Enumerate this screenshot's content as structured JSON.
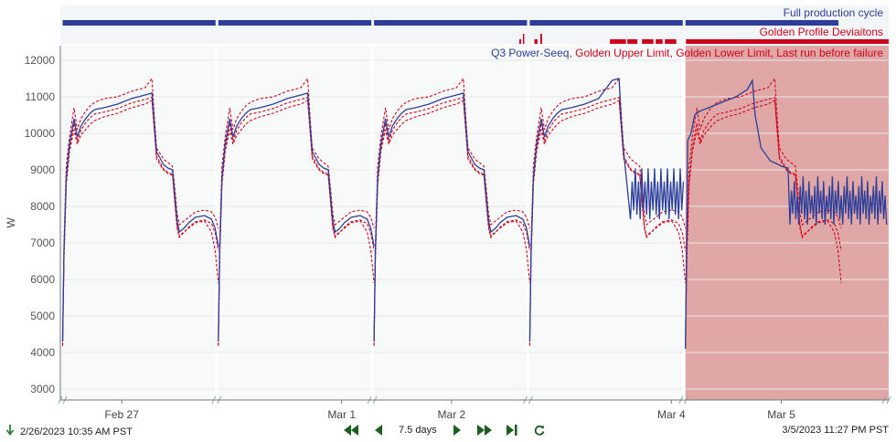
{
  "capsule_lanes": [
    {
      "label": "Full production cycle",
      "color": "#2c3e99"
    },
    {
      "label": "Golden Profile Deviaitons",
      "color": "#d0021b"
    }
  ],
  "legend": [
    {
      "text": "Q3 Power-Seeq",
      "color": "#2c3e99"
    },
    {
      "text": ", ",
      "color": "#d0021b"
    },
    {
      "text": "Golden Upper Limit",
      "color": "#d0021b"
    },
    {
      "text": ", ",
      "color": "#d0021b"
    },
    {
      "text": "Golden Lower Limit",
      "color": "#d0021b"
    },
    {
      "text": ", ",
      "color": "#d0021b"
    },
    {
      "text": "Last run before failure",
      "color": "#d0021b"
    }
  ],
  "chart_data": {
    "type": "line",
    "ylabel": "W",
    "ylim": [
      2700,
      12400
    ],
    "y_ticks": [
      3000,
      4000,
      5000,
      6000,
      7000,
      8000,
      9000,
      10000,
      11000,
      12000
    ],
    "x_range_hours": [
      0,
      180.87
    ],
    "x_tick_labels": [
      {
        "label": "Feb 27",
        "hour": 13.42
      },
      {
        "label": "Mar 1",
        "hour": 61.42
      },
      {
        "label": "Mar 2",
        "hour": 85.42
      },
      {
        "label": "Mar 4",
        "hour": 133.42
      },
      {
        "label": "Mar 5",
        "hour": 157.42
      }
    ],
    "cycle_starts_hours": [
      0.5,
      34.5,
      68.5,
      102.5,
      136.5
    ],
    "cycle_length_hours": 34,
    "highlight_range_hours": [
      136.5,
      180.87
    ],
    "series": [
      {
        "name": "Q3 Power-Seeq",
        "color": "#2c3e99",
        "style": "solid"
      },
      {
        "name": "Golden Upper Limit",
        "color": "#d0021b",
        "style": "dashed"
      },
      {
        "name": "Golden Lower Limit",
        "color": "#d0021b",
        "style": "dashed"
      },
      {
        "name": "Last run before failure",
        "color": "#d0021b",
        "style": "dashed"
      }
    ],
    "cycle_profile_hours": [
      0,
      0.3,
      0.8,
      1.5,
      2.5,
      3.2,
      4.0,
      5.0,
      6.0,
      7.0,
      9.0,
      12.0,
      15.0,
      18.0,
      19.5,
      20.0,
      20.5,
      22.0,
      23.0,
      24.0,
      24.5,
      25.0,
      25.5,
      26.0,
      26.5,
      27.5,
      29.0,
      31.0,
      32.5,
      33.3,
      34.0
    ],
    "profile_main_w": [
      4300,
      6800,
      8800,
      9700,
      10400,
      9900,
      10200,
      10400,
      10550,
      10650,
      10700,
      10800,
      10950,
      11050,
      11100,
      10300,
      9500,
      9150,
      9050,
      9000,
      8300,
      7600,
      7300,
      7350,
      7400,
      7550,
      7700,
      7750,
      7650,
      7400,
      6900
    ],
    "profile_upper_w": [
      4400,
      7000,
      9100,
      9900,
      10700,
      10100,
      10400,
      10600,
      10750,
      10850,
      10950,
      11000,
      11150,
      11250,
      11500,
      10500,
      9600,
      9300,
      9200,
      9100,
      8500,
      7800,
      7500,
      7550,
      7600,
      7700,
      7850,
      7900,
      7850,
      7700,
      7400
    ],
    "profile_lower_w": [
      4200,
      6600,
      8600,
      9500,
      10100,
      9700,
      9950,
      10100,
      10250,
      10350,
      10450,
      10550,
      10700,
      10800,
      10900,
      10100,
      9300,
      9000,
      8900,
      8850,
      8100,
      7400,
      7150,
      7250,
      7300,
      7400,
      7550,
      7600,
      7300,
      6800,
      5900
    ]
  },
  "bottom": {
    "start_time": "2/26/2023 10:35 AM  PST",
    "end_time": "3/5/2023 11:27 PM  PST",
    "span": "7.5 days"
  }
}
